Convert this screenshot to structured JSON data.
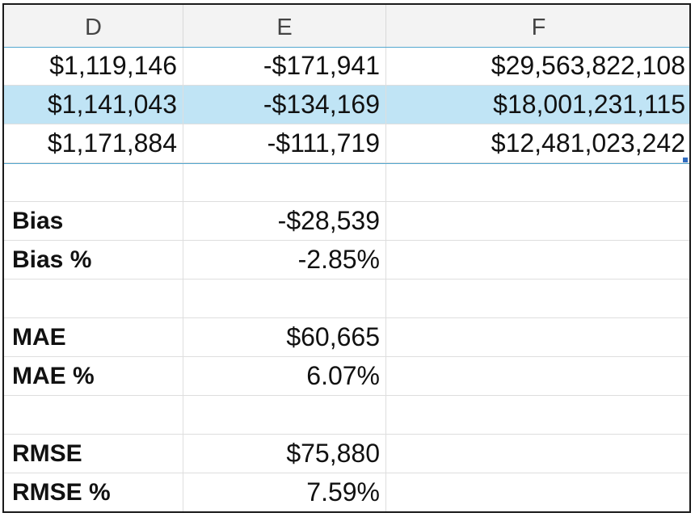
{
  "columns": [
    "D",
    "E",
    "F"
  ],
  "rows": [
    {
      "d": "$1,119,146",
      "e": "-$171,941",
      "f": "$29,563,822,108",
      "selected": false
    },
    {
      "d": "$1,141,043",
      "e": "-$134,169",
      "f": "$18,001,231,115",
      "selected": true
    },
    {
      "d": "$1,171,884",
      "e": "-$111,719",
      "f": "$12,481,023,242",
      "selected": false
    },
    {
      "d": "",
      "e": "",
      "f": "",
      "selected": false
    },
    {
      "d": "Bias",
      "e": "-$28,539",
      "f": "",
      "label": true
    },
    {
      "d": "Bias %",
      "e": "-2.85%",
      "f": "",
      "label": true
    },
    {
      "d": "",
      "e": "",
      "f": ""
    },
    {
      "d": "MAE",
      "e": "$60,665",
      "f": "",
      "label": true
    },
    {
      "d": "MAE %",
      "e": "6.07%",
      "f": "",
      "label": true
    },
    {
      "d": "",
      "e": "",
      "f": ""
    },
    {
      "d": "RMSE",
      "e": "$75,880",
      "f": "",
      "label": true
    },
    {
      "d": "RMSE %",
      "e": "7.59%",
      "f": "",
      "label": true
    }
  ]
}
